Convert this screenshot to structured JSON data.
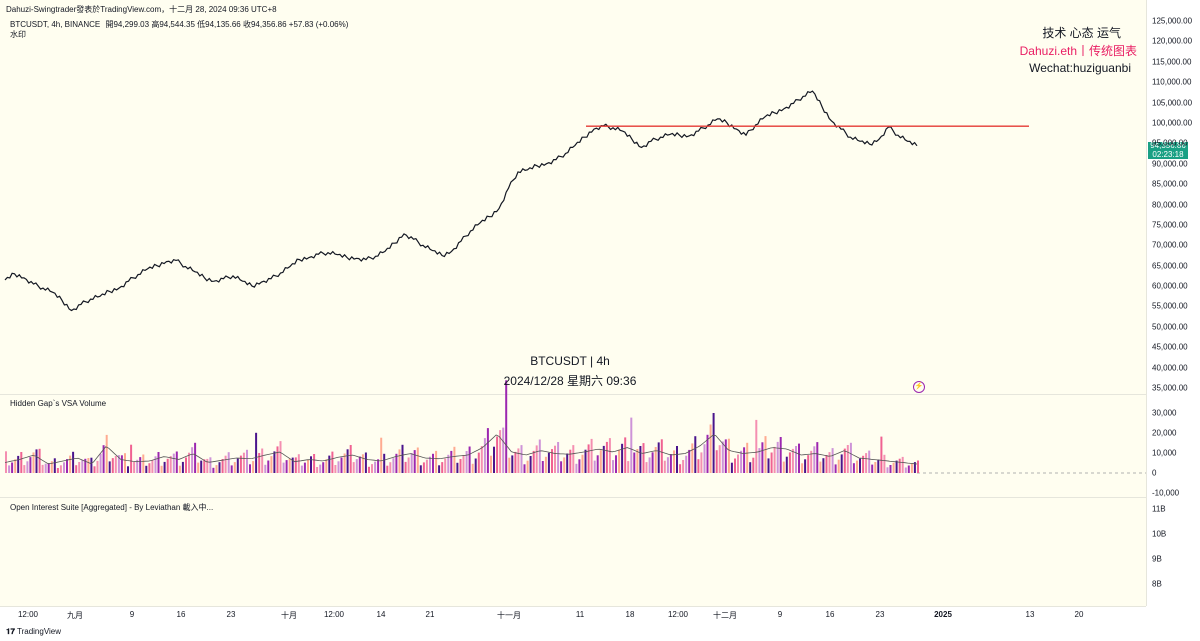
{
  "top_bar": "Dahuzi-Swingtrader發表於TradingView.com，十二月 28, 2024 09:36 UTC+8",
  "symbol_line": {
    "symbol": "BTCUSDT, 4h, BINANCE",
    "open_label": "開",
    "open": "94,299.03",
    "high_label": "高",
    "high": "94,544.35",
    "low_label": "低",
    "low": "94,135.66",
    "close_label": "收",
    "close": "94,356.86",
    "change": "+57.83 (+0.06%)"
  },
  "watermark_line": "水印",
  "watermark": {
    "line1": "技术 心态 运气",
    "line2": "Dahuzi.eth丨传统图表",
    "line3": "Wechat:huziguanbi",
    "line2_color": "#e91e63"
  },
  "center_label": {
    "line1": "BTCUSDT | 4h",
    "line2": "2024/12/28 星期六 09:36"
  },
  "price_badge": {
    "price": "94,356.86",
    "countdown": "02:23:18",
    "color": "#1aa084"
  },
  "volume_title": "Hidden Gap`s VSA Volume",
  "oi_title": "Open Interest Suite [Aggregated] - By Leviathan 載入中...",
  "footer": "TradingView",
  "chart_data": [
    {
      "type": "line",
      "series": [
        {
          "values": [
            61500,
            63000,
            62000,
            60500,
            59500,
            58500,
            56500,
            54000,
            55500,
            56800,
            57500,
            58700,
            59500,
            61200,
            62800,
            64200,
            65000,
            66000,
            66300,
            64800,
            63500,
            62000,
            61200,
            61800,
            62500,
            61200,
            60000,
            61000,
            61800,
            63200,
            64800,
            66500,
            67000,
            67800,
            68200,
            67700,
            67000,
            66800,
            66500,
            67300,
            68500,
            70500,
            72800,
            71500,
            70000,
            68700,
            67500,
            68500,
            71000,
            73500,
            75500,
            77000,
            79000,
            84000,
            88000,
            88500,
            89500,
            90000,
            91000,
            92500,
            94500,
            96500,
            98500,
            99300,
            98800,
            98000,
            96000,
            94000,
            95500,
            96500,
            97200,
            97000,
            96800,
            98000,
            99500,
            101000,
            100000,
            98500,
            97000,
            99500,
            101500,
            102500,
            103500,
            104800,
            106500,
            107800,
            104000,
            100500,
            98500,
            96500,
            95500,
            94800,
            96000,
            99000,
            97000,
            95500,
            94400
          ]
        }
      ],
      "y_ticks": [
        "125,000.00",
        "120,000.00",
        "115,000.00",
        "110,000.00",
        "105,000.00",
        "100,000.00",
        "95,000.00",
        "90,000.00",
        "85,000.00",
        "80,000.00",
        "75,000.00",
        "70,000.00",
        "65,000.00",
        "60,000.00",
        "55,000.00",
        "50,000.00",
        "45,000.00",
        "40,000.00",
        "35,000.00"
      ],
      "ylim": [
        35000,
        125000
      ],
      "resistance": {
        "price": 99200,
        "color": "#e53935"
      }
    },
    {
      "type": "bar",
      "title": "Hidden Gap`s VSA Volume",
      "y_ticks": [
        "30,000",
        "20,000",
        "10,000",
        "0",
        "-10,000"
      ],
      "ylim": [
        -10000,
        30000
      ],
      "values": [
        7000,
        9000,
        12000,
        6000,
        8000,
        10000,
        6000,
        18000,
        9000,
        7500,
        8000,
        11000,
        9000,
        13000,
        7000,
        8500,
        10000,
        9500,
        12000,
        14000,
        7500,
        9000,
        8000,
        10500,
        12000,
        9000,
        8000,
        11000,
        13000,
        10000,
        9500,
        11000,
        12000,
        17000,
        26000,
        14000,
        12000,
        15000,
        13000,
        12500,
        14000,
        16000,
        14000,
        17000,
        13000,
        15000,
        12000,
        13000,
        18000,
        26000,
        15000,
        13000,
        14000,
        17000,
        16000,
        12000,
        13000,
        11000,
        15000,
        10000,
        9000,
        8000,
        7000,
        6000
      ],
      "colors": [
        "#f48fb1",
        "#ce93d8",
        "#9c27b0",
        "#ffab91",
        "#4a148c",
        "#f06292"
      ],
      "ma_color": "#555555"
    },
    {
      "type": "line",
      "title": "Open Interest Suite [Aggregated] - By Leviathan 載入中...",
      "y_ticks": [
        "11B",
        "10B",
        "9B",
        "8B"
      ],
      "series": []
    }
  ],
  "x_ticks": [
    "12:00",
    "九月",
    "9",
    "16",
    "23",
    "十月",
    "12:00",
    "14",
    "21",
    "十一月",
    "11",
    "18",
    "12:00",
    "十二月",
    "9",
    "16",
    "23",
    "2025",
    "13",
    "20"
  ]
}
